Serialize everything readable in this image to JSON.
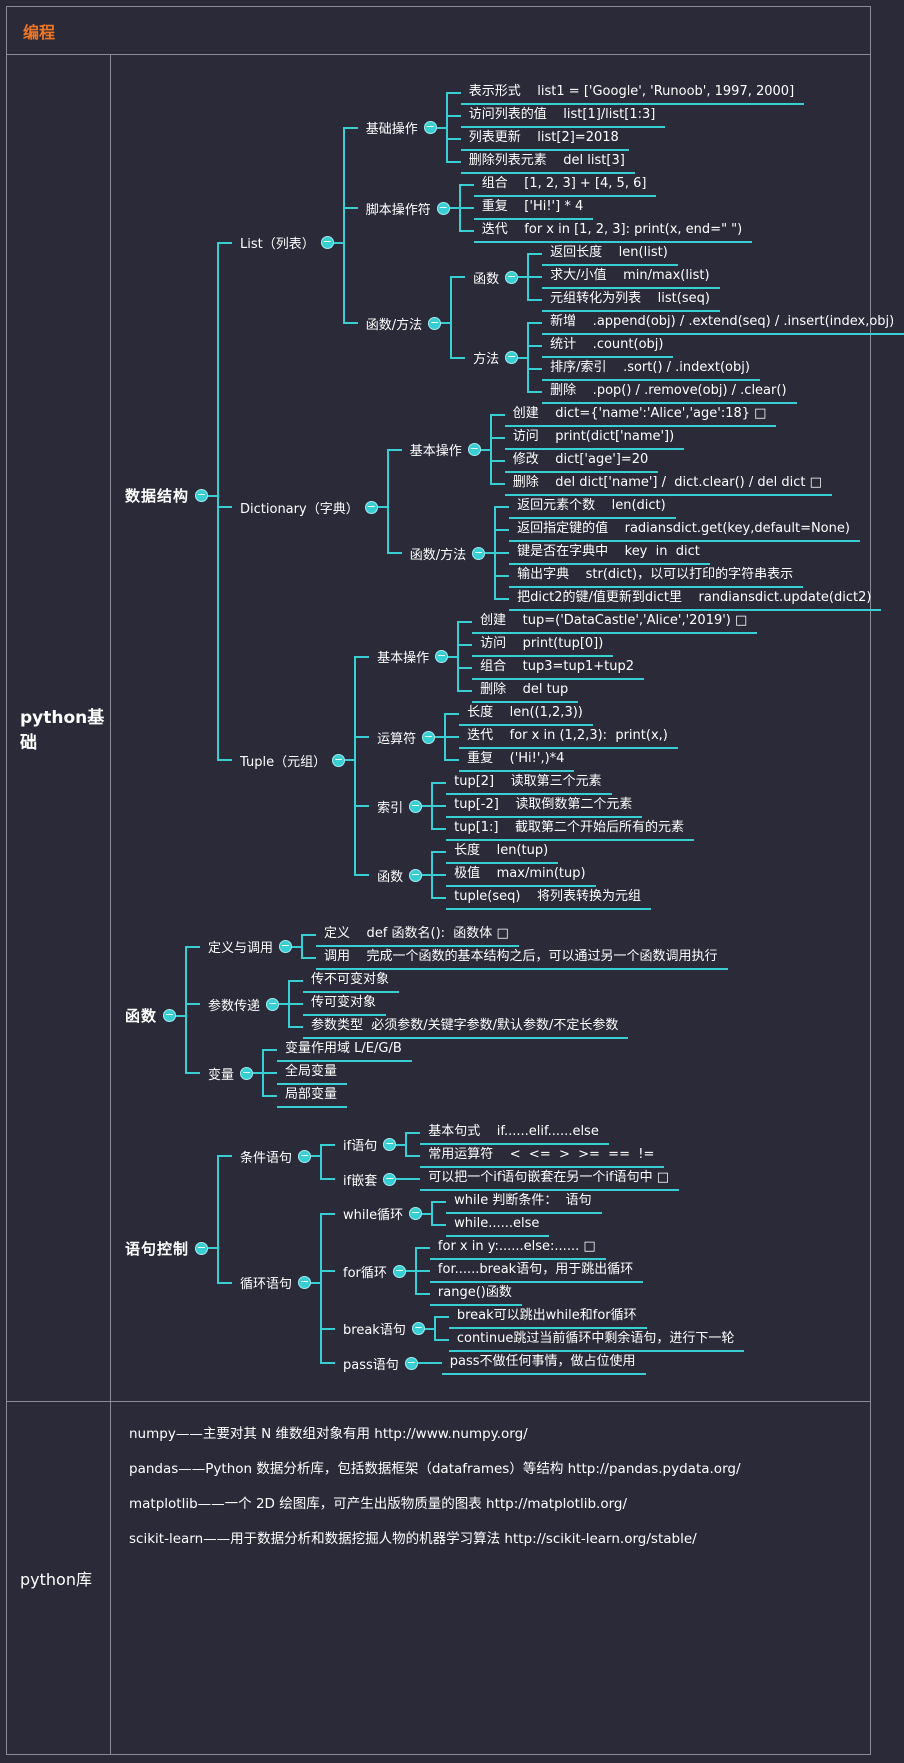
{
  "header": {
    "title": "编程"
  },
  "icons": {
    "collapse": "−"
  },
  "colors": {
    "background": "#2a2a38",
    "accent": "#38cfd4",
    "grid": "#8b8b95",
    "header_orange": "#ee7623",
    "text": "#ffffff"
  },
  "basics": {
    "label": "python基础",
    "groups": [
      {
        "t": "数据结构",
        "c": [
          {
            "t": "List（列表）",
            "c": [
              {
                "t": "基础操作",
                "c": [
                  {
                    "t": "表示形式    list1 = ['Google', 'Runoob', 1997, 2000]"
                  },
                  {
                    "t": "访问列表的值    list[1]/list[1:3]"
                  },
                  {
                    "t": "列表更新    list[2]=2018"
                  },
                  {
                    "t": "删除列表元素    del list[3]"
                  }
                ]
              },
              {
                "t": "脚本操作符",
                "c": [
                  {
                    "t": "组合    [1, 2, 3] + [4, 5, 6]"
                  },
                  {
                    "t": "重复    ['Hi!'] * 4"
                  },
                  {
                    "t": "迭代    for x in [1, 2, 3]: print(x, end=\" \")"
                  }
                ]
              },
              {
                "t": "函数/方法",
                "c": [
                  {
                    "t": "函数",
                    "c": [
                      {
                        "t": "返回长度    len(list)"
                      },
                      {
                        "t": "求大/小值    min/max(list)"
                      },
                      {
                        "t": "元组转化为列表    list(seq)"
                      }
                    ]
                  },
                  {
                    "t": "方法",
                    "c": [
                      {
                        "t": "新增    .append(obj) / .extend(seq) / .insert(index,obj)"
                      },
                      {
                        "t": "统计    .count(obj)"
                      },
                      {
                        "t": "排序/索引    .sort() / .indext(obj)"
                      },
                      {
                        "t": "删除    .pop() / .remove(obj) / .clear()"
                      }
                    ]
                  }
                ]
              }
            ]
          },
          {
            "t": "Dictionary（字典）",
            "c": [
              {
                "t": "基本操作",
                "c": [
                  {
                    "t": "创建    dict={'name':'Alice','age':18} □"
                  },
                  {
                    "t": "访问    print(dict['name'])"
                  },
                  {
                    "t": "修改    dict['age']=20"
                  },
                  {
                    "t": "删除    del dict['name'] /  dict.clear() / del dict □"
                  }
                ]
              },
              {
                "t": "函数/方法",
                "c": [
                  {
                    "t": "返回元素个数    len(dict)"
                  },
                  {
                    "t": "返回指定键的值    radiansdict.get(key,default=None)"
                  },
                  {
                    "t": "键是否在字典中    key  in  dict"
                  },
                  {
                    "t": "输出字典    str(dict)，以可以打印的字符串表示"
                  },
                  {
                    "t": "把dict2的键/值更新到dict里    randiansdict.update(dict2)"
                  }
                ]
              }
            ]
          },
          {
            "t": "Tuple（元组）",
            "c": [
              {
                "t": "基本操作",
                "c": [
                  {
                    "t": "创建    tup=('DataCastle','Alice','2019') □"
                  },
                  {
                    "t": "访问    print(tup[0])"
                  },
                  {
                    "t": "组合    tup3=tup1+tup2"
                  },
                  {
                    "t": "删除    del tup"
                  }
                ]
              },
              {
                "t": "运算符",
                "c": [
                  {
                    "t": "长度    len((1,2,3))"
                  },
                  {
                    "t": "迭代    for x in (1,2,3):  print(x,)"
                  },
                  {
                    "t": "重复    ('Hi!',)*4"
                  }
                ]
              },
              {
                "t": "索引",
                "c": [
                  {
                    "t": "tup[2]    读取第三个元素"
                  },
                  {
                    "t": "tup[-2]    读取倒数第二个元素"
                  },
                  {
                    "t": "tup[1:]    截取第二个开始后所有的元素"
                  }
                ]
              },
              {
                "t": "函数",
                "c": [
                  {
                    "t": "长度    len(tup)"
                  },
                  {
                    "t": "极值    max/min(tup)"
                  },
                  {
                    "t": "tuple(seq)    将列表转换为元组"
                  }
                ]
              }
            ]
          }
        ]
      },
      {
        "t": "函数",
        "c": [
          {
            "t": "定义与调用",
            "c": [
              {
                "t": "定义    def 函数名():  函数体 □"
              },
              {
                "t": "调用    完成一个函数的基本结构之后，可以通过另一个函数调用执行"
              }
            ]
          },
          {
            "t": "参数传递",
            "c": [
              {
                "t": "传不可变对象"
              },
              {
                "t": "传可变对象"
              },
              {
                "t": "参数类型  必须参数/关键字参数/默认参数/不定长参数"
              }
            ]
          },
          {
            "t": "变量",
            "c": [
              {
                "t": "变量作用域 L/E/G/B"
              },
              {
                "t": "全局变量"
              },
              {
                "t": "局部变量"
              }
            ]
          }
        ]
      },
      {
        "t": "语句控制",
        "c": [
          {
            "t": "条件语句",
            "c": [
              {
                "t": "if语句",
                "c": [
                  {
                    "t": "基本句式    if......elif......else"
                  },
                  {
                    "t": "常用运算符    <  <=  >  >=  ==  !="
                  }
                ]
              },
              {
                "t": "if嵌套",
                "c": [
                  {
                    "t": "可以把一个if语句嵌套在另一个if语句中 □"
                  }
                ]
              }
            ]
          },
          {
            "t": "循环语句",
            "c": [
              {
                "t": "while循环",
                "c": [
                  {
                    "t": "while 判断条件：  语句"
                  },
                  {
                    "t": "while......else"
                  }
                ]
              },
              {
                "t": "for循环",
                "c": [
                  {
                    "t": "for x in y:......else:...... □"
                  },
                  {
                    "t": "for......break语句，用于跳出循环"
                  },
                  {
                    "t": "range()函数"
                  }
                ]
              },
              {
                "t": "break语句",
                "c": [
                  {
                    "t": "break可以跳出while和for循环"
                  },
                  {
                    "t": "continue跳过当前循环中剩余语句，进行下一轮"
                  }
                ]
              },
              {
                "t": "pass语句",
                "c": [
                  {
                    "t": "pass不做任何事情，做占位使用"
                  }
                ]
              }
            ]
          }
        ]
      }
    ]
  },
  "libs": {
    "label": "python库",
    "items": [
      "numpy——主要对其 N 维数组对象有用 http://www.numpy.org/",
      "pandas——Python 数据分析库，包括数据框架（dataframes）等结构 http://pandas.pydata.org/",
      "matplotlib——一个 2D 绘图库，可产生出版物质量的图表 http://matplotlib.org/",
      "scikit-learn——用于数据分析和数据挖掘人物的机器学习算法 http://scikit-learn.org/stable/"
    ]
  }
}
